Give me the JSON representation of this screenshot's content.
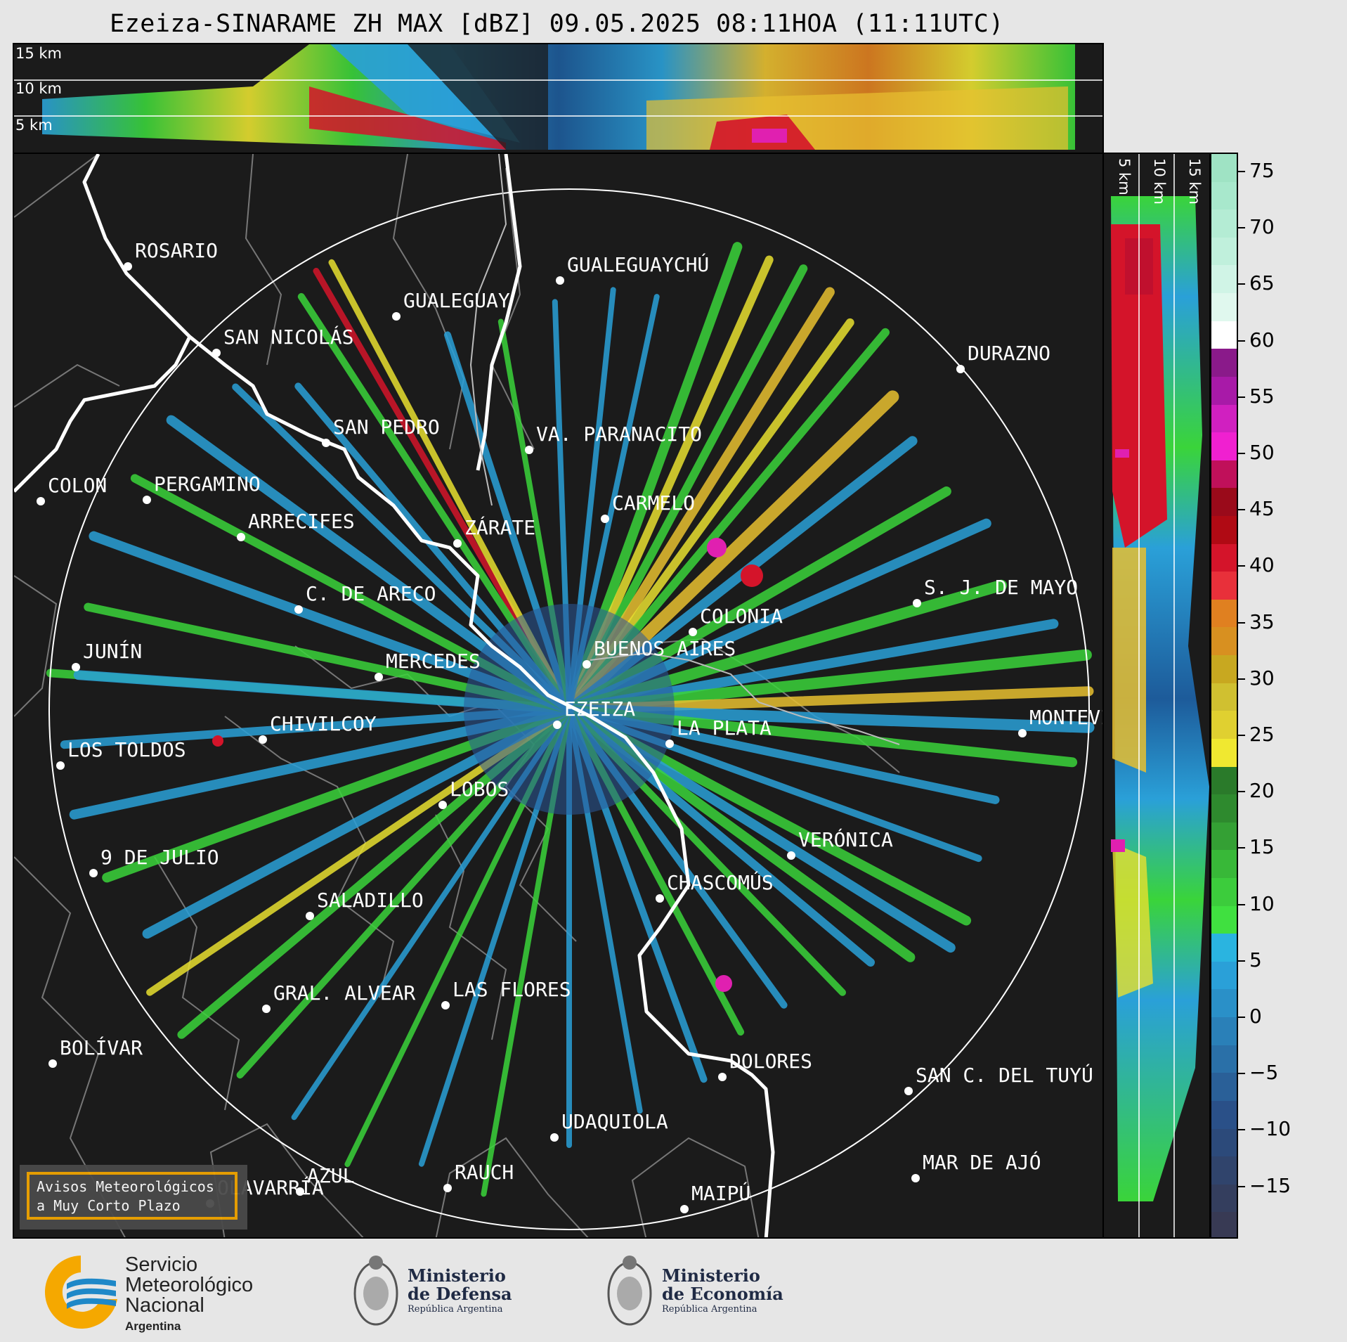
{
  "title": "Ezeiza-SINARAME ZH MAX [dBZ] 09.05.2025 08:11HOA (11:11UTC)",
  "height_labels_top": [
    "15 km",
    "10 km",
    "5 km"
  ],
  "height_labels_side": [
    "5 km",
    "10 km",
    "15 km"
  ],
  "colorbar": {
    "unit": "dBZ",
    "ticks": [
      "75",
      "70",
      "65",
      "60",
      "55",
      "50",
      "45",
      "40",
      "35",
      "30",
      "25",
      "20",
      "15",
      "10",
      "5",
      "0",
      "−5",
      "−10",
      "−15"
    ]
  },
  "cities": [
    {
      "id": "rosario",
      "name": "ROSARIO"
    },
    {
      "id": "gualeguaychu",
      "name": "GUALEGUAYCHÚ"
    },
    {
      "id": "gualeguay",
      "name": "GUALEGUAY"
    },
    {
      "id": "san-nicolas",
      "name": "SAN NICOLÁS"
    },
    {
      "id": "durazno",
      "name": "DURAZNO"
    },
    {
      "id": "san-pedro",
      "name": "SAN PEDRO"
    },
    {
      "id": "villa-paranacito",
      "name": "VA. PARANACITO"
    },
    {
      "id": "colon",
      "name": "COLON"
    },
    {
      "id": "pergamino",
      "name": "PERGAMINO"
    },
    {
      "id": "carmelo",
      "name": "CARMELO"
    },
    {
      "id": "arrecifes",
      "name": "ARRECIFES"
    },
    {
      "id": "zarate",
      "name": "ZÁRATE"
    },
    {
      "id": "sj-de-mayo",
      "name": "S. J. DE MAYO"
    },
    {
      "id": "c-de-areco",
      "name": "C. DE ARECO"
    },
    {
      "id": "colonia",
      "name": "COLONIA"
    },
    {
      "id": "junin",
      "name": "JUNÍN"
    },
    {
      "id": "buenos-aires",
      "name": "BUENOS AIRES"
    },
    {
      "id": "mercedes",
      "name": "MERCEDES"
    },
    {
      "id": "ezeiza",
      "name": "EZEIZA"
    },
    {
      "id": "montevideo",
      "name": "MONTEVIDEO"
    },
    {
      "id": "chivilcoy",
      "name": "CHIVILCOY"
    },
    {
      "id": "la-plata",
      "name": "LA PLATA"
    },
    {
      "id": "los-toldos",
      "name": "LOS TOLDOS"
    },
    {
      "id": "lobos",
      "name": "LOBOS"
    },
    {
      "id": "veronica",
      "name": "VERÓNICA"
    },
    {
      "id": "9-de-julio",
      "name": "9 DE JULIO"
    },
    {
      "id": "chascomus",
      "name": "CHASCOMÚS"
    },
    {
      "id": "saladillo",
      "name": "SALADILLO"
    },
    {
      "id": "gral-alvear",
      "name": "GRAL. ALVEAR"
    },
    {
      "id": "las-flores",
      "name": "LAS FLORES"
    },
    {
      "id": "bolivar",
      "name": "BOLÍVAR"
    },
    {
      "id": "dolores",
      "name": "DOLORES"
    },
    {
      "id": "san-c-del-tuyu",
      "name": "SAN C. DEL TUYÚ"
    },
    {
      "id": "udaquiola",
      "name": "UDAQUIOLA"
    },
    {
      "id": "azul",
      "name": "AZUL"
    },
    {
      "id": "rauch",
      "name": "RAUCH"
    },
    {
      "id": "mar-de-ajo",
      "name": "MAR DE AJÓ"
    },
    {
      "id": "olavarria",
      "name": "OLAVARRÍA"
    },
    {
      "id": "maipu",
      "name": "MAIPÚ"
    }
  ],
  "avisos": {
    "line1": "Avisos Meteorológicos",
    "line2": "a Muy Corto Plazo"
  },
  "logos": {
    "smn": {
      "line1": "Servicio",
      "line2": "Meteorológico",
      "line3": "Nacional",
      "line4": "Argentina"
    },
    "defensa": {
      "line1": "Ministerio",
      "line2": "de Defensa",
      "line3": "República Argentina"
    },
    "economia": {
      "line1": "Ministerio",
      "line2": "de Economía",
      "line3": "República Argentina"
    }
  },
  "colors": {
    "background": "#1b1b1b",
    "accent_orange": "#f0a500",
    "smn_blue": "#1e88c8",
    "smn_yellow": "#f5a800"
  }
}
